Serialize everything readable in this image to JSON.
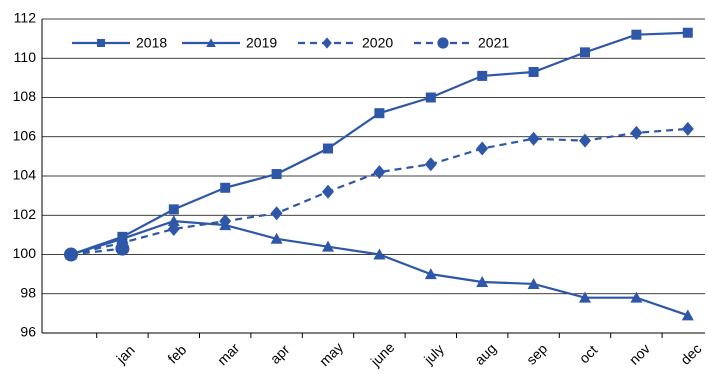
{
  "chart_data": {
    "type": "line",
    "categories": [
      null,
      "jan",
      "feb",
      "mar",
      "apr",
      "may",
      "june",
      "july",
      "aug",
      "sep",
      "oct",
      "nov",
      "dec"
    ],
    "series": [
      {
        "name": "2018",
        "color": "#2f57a8",
        "marker": "square",
        "dashed": false,
        "values": [
          100,
          100.9,
          102.3,
          103.4,
          104.1,
          105.4,
          107.2,
          108.0,
          109.1,
          109.3,
          110.3,
          111.2,
          111.3
        ]
      },
      {
        "name": "2019",
        "color": "#2f57a8",
        "marker": "triangle",
        "dashed": false,
        "values": [
          100,
          100.8,
          101.7,
          101.5,
          100.8,
          100.4,
          100.0,
          99.0,
          98.6,
          98.5,
          97.8,
          97.8,
          96.9
        ]
      },
      {
        "name": "2020",
        "color": "#2f57a8",
        "marker": "diamond",
        "dashed": true,
        "values": [
          100,
          100.6,
          101.3,
          101.7,
          102.1,
          103.2,
          104.2,
          104.6,
          105.4,
          105.9,
          105.8,
          106.2,
          106.4
        ]
      },
      {
        "name": "2021",
        "color": "#2f57a8",
        "marker": "circle",
        "dashed": true,
        "values": [
          100,
          100.3,
          null,
          null,
          null,
          null,
          null,
          null,
          null,
          null,
          null,
          null,
          null
        ]
      }
    ],
    "ylim": [
      96,
      112
    ],
    "yticks": [
      96,
      98,
      100,
      102,
      104,
      106,
      108,
      110,
      112
    ],
    "grid": true,
    "legend": "top-left"
  }
}
